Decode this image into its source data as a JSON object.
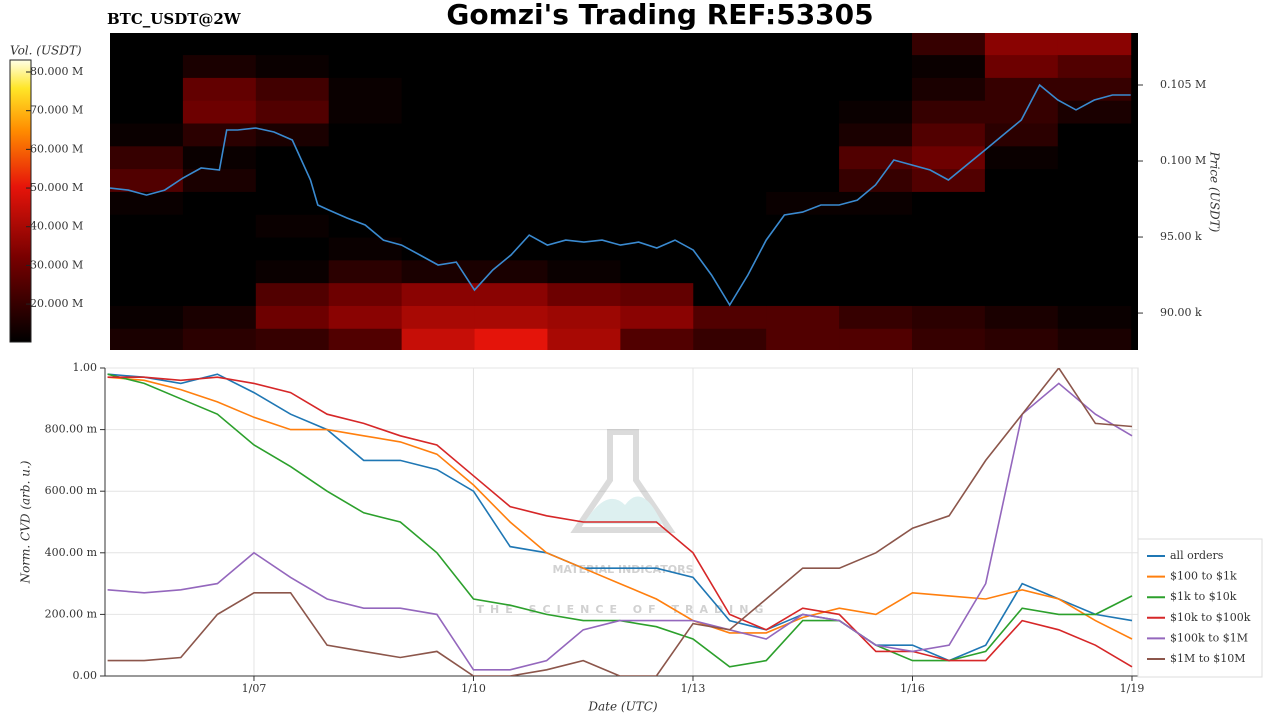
{
  "chart_data": [
    {
      "type": "heatmap",
      "title": "Gomzi's Trading REF:53305",
      "subtitle": "BTC_USDT@2W",
      "colorbar_label": "Vol. (USDT)",
      "ylabel": "Price (USDT)",
      "xlim": [
        5.0,
        19.1
      ],
      "ylim": [
        87570,
        108420
      ],
      "yticks": [
        {
          "value": 90000,
          "label": "90.00 k"
        },
        {
          "value": 95000,
          "label": "95.00 k"
        },
        {
          "value": 100000,
          "label": "0.100 M"
        },
        {
          "value": 105000,
          "label": "0.105 M"
        }
      ],
      "zlim": [
        10200000,
        83100000
      ],
      "zticks": [
        {
          "value": 20000000,
          "label": "20.000 M"
        },
        {
          "value": 30000000,
          "label": "30.000 M"
        },
        {
          "value": 40000000,
          "label": "40.000 M"
        },
        {
          "value": 50000000,
          "label": "50.000 M"
        },
        {
          "value": 60000000,
          "label": "60.000 M"
        },
        {
          "value": 70000000,
          "label": "70.000 M"
        },
        {
          "value": 80000000,
          "label": "80.000 M"
        }
      ],
      "x_bins": [
        5,
        6,
        7,
        8,
        9,
        10,
        11,
        12,
        13,
        14,
        15,
        16,
        17,
        18,
        19
      ],
      "y_bins": [
        87500,
        89000,
        90500,
        92000,
        93500,
        95000,
        96500,
        98000,
        99500,
        101000,
        102500,
        104000,
        105500,
        107000,
        108500
      ],
      "z": [
        [
          15000000,
          18000000,
          20000000,
          25000000,
          45000000,
          50000000,
          40000000,
          25000000,
          20000000,
          25000000,
          25000000,
          20000000,
          18000000,
          15000000
        ],
        [
          12000000,
          15000000,
          30000000,
          35000000,
          40000000,
          40000000,
          38000000,
          35000000,
          25000000,
          25000000,
          20000000,
          18000000,
          15000000,
          12000000
        ],
        [
          8000000,
          10000000,
          25000000,
          30000000,
          35000000,
          35000000,
          30000000,
          28000000,
          10000000,
          10000000,
          8000000,
          8000000,
          8000000,
          8000000
        ],
        [
          5000000,
          5000000,
          12000000,
          18000000,
          15000000,
          15000000,
          12000000,
          10000000,
          5000000,
          5000000,
          5000000,
          5000000,
          5000000,
          5000000
        ],
        [
          5000000,
          5000000,
          10000000,
          12000000,
          8000000,
          8000000,
          8000000,
          8000000,
          5000000,
          5000000,
          5000000,
          5000000,
          5000000,
          5000000
        ],
        [
          8000000,
          5000000,
          12000000,
          10000000,
          5000000,
          5000000,
          5000000,
          5000000,
          8000000,
          8000000,
          5000000,
          5000000,
          5000000,
          5000000
        ],
        [
          12000000,
          10000000,
          10000000,
          6000000,
          5000000,
          5000000,
          5000000,
          5000000,
          10000000,
          12000000,
          12000000,
          8000000,
          8000000,
          8000000
        ],
        [
          25000000,
          15000000,
          8000000,
          5000000,
          5000000,
          5000000,
          5000000,
          5000000,
          5000000,
          10000000,
          20000000,
          25000000,
          10000000,
          8000000
        ],
        [
          20000000,
          12000000,
          6000000,
          5000000,
          5000000,
          5000000,
          5000000,
          5000000,
          5000000,
          8000000,
          25000000,
          30000000,
          12000000,
          10000000
        ],
        [
          12000000,
          18000000,
          15000000,
          8000000,
          5000000,
          5000000,
          5000000,
          5000000,
          5000000,
          5000000,
          15000000,
          25000000,
          18000000,
          10000000
        ],
        [
          10000000,
          30000000,
          25000000,
          12000000,
          8000000,
          6000000,
          5000000,
          5000000,
          5000000,
          5000000,
          12000000,
          20000000,
          20000000,
          15000000
        ],
        [
          10000000,
          28000000,
          22000000,
          12000000,
          8000000,
          8000000,
          6000000,
          6000000,
          6000000,
          6000000,
          10000000,
          15000000,
          20000000,
          20000000
        ],
        [
          8000000,
          15000000,
          12000000,
          10000000,
          10000000,
          8000000,
          8000000,
          8000000,
          8000000,
          8000000,
          10000000,
          12000000,
          30000000,
          25000000
        ],
        [
          8000000,
          10000000,
          10000000,
          10000000,
          8000000,
          8000000,
          8000000,
          8000000,
          8000000,
          8000000,
          10000000,
          20000000,
          35000000,
          35000000
        ]
      ],
      "line": {
        "color": "#3a8ad0",
        "x": [
          5,
          5.25,
          5.5,
          5.75,
          6,
          6.25,
          6.5,
          6.6,
          6.75,
          7,
          7.25,
          7.5,
          7.75,
          7.85,
          8,
          8.25,
          8.5,
          8.75,
          9,
          9.25,
          9.5,
          9.75,
          10,
          10.25,
          10.5,
          10.75,
          11,
          11.25,
          11.5,
          11.75,
          12,
          12.25,
          12.5,
          12.75,
          13,
          13.25,
          13.5,
          13.75,
          14,
          14.25,
          14.5,
          14.75,
          15,
          15.25,
          15.5,
          15.75,
          16,
          16.25,
          16.5,
          16.75,
          17,
          17.25,
          17.5,
          17.75,
          18,
          18.25,
          18.5,
          18.75,
          19
        ],
        "values": [
          98220,
          98090,
          97760,
          98090,
          98880,
          99540,
          99410,
          102040,
          102040,
          102170,
          101910,
          101380,
          98750,
          97110,
          96780,
          96250,
          95790,
          94800,
          94470,
          93820,
          93160,
          93350,
          91510,
          92830,
          93820,
          95130,
          94470,
          94800,
          94670,
          94800,
          94470,
          94670,
          94280,
          94800,
          94140,
          92500,
          90530,
          92500,
          94800,
          96450,
          96640,
          97110,
          97110,
          97430,
          98420,
          100070,
          99740,
          99410,
          98750,
          99740,
          100720,
          101710,
          102700,
          105000,
          104010,
          103360,
          104010,
          104340,
          104340
        ]
      }
    },
    {
      "type": "line",
      "xlabel": "Date (UTC)",
      "ylabel": "Norm. CVD (arb. u.)",
      "annotations": [
        "MATERIAL INDICATORS",
        "THE SCIENCE OF TRADING"
      ],
      "xlim": [
        4.964,
        19.082
      ],
      "ylim": [
        0,
        1
      ],
      "grid": true,
      "xticks": [
        {
          "value": 7,
          "label": "1/07"
        },
        {
          "value": 10,
          "label": "1/10"
        },
        {
          "value": 13,
          "label": "1/13"
        },
        {
          "value": 16,
          "label": "1/16"
        },
        {
          "value": 19,
          "label": "1/19"
        }
      ],
      "yticks": [
        {
          "value": 0,
          "label": "0.00"
        },
        {
          "value": 0.2,
          "label": "200.00 m"
        },
        {
          "value": 0.4,
          "label": "400.00 m"
        },
        {
          "value": 0.6,
          "label": "600.00 m"
        },
        {
          "value": 0.8,
          "label": "800.00 m"
        },
        {
          "value": 1,
          "label": "1.00"
        }
      ],
      "x": [
        5,
        5.5,
        6,
        6.5,
        7,
        7.5,
        8,
        8.5,
        9,
        9.5,
        10,
        10.5,
        11,
        11.5,
        12,
        12.5,
        13,
        13.5,
        14,
        14.5,
        15,
        15.5,
        16,
        16.5,
        17,
        17.5,
        18,
        18.5,
        19
      ],
      "legend": "lower-right",
      "series": [
        {
          "name": "all orders",
          "color": "#1f77b4",
          "values": [
            0.98,
            0.97,
            0.95,
            0.98,
            0.92,
            0.85,
            0.8,
            0.7,
            0.7,
            0.67,
            0.6,
            0.42,
            0.4,
            0.35,
            0.35,
            0.35,
            0.32,
            0.18,
            0.15,
            0.2,
            0.18,
            0.1,
            0.1,
            0.05,
            0.1,
            0.3,
            0.25,
            0.2,
            0.18
          ]
        },
        {
          "name": "$100 to $1k",
          "color": "#ff7f0e",
          "values": [
            0.97,
            0.96,
            0.93,
            0.89,
            0.84,
            0.8,
            0.8,
            0.78,
            0.76,
            0.72,
            0.62,
            0.5,
            0.4,
            0.35,
            0.3,
            0.25,
            0.18,
            0.14,
            0.14,
            0.19,
            0.22,
            0.2,
            0.27,
            0.26,
            0.25,
            0.28,
            0.25,
            0.18,
            0.12
          ]
        },
        {
          "name": "$1k to $10k",
          "color": "#2ca02c",
          "values": [
            0.98,
            0.95,
            0.9,
            0.85,
            0.75,
            0.68,
            0.6,
            0.53,
            0.5,
            0.4,
            0.25,
            0.23,
            0.2,
            0.18,
            0.18,
            0.16,
            0.12,
            0.03,
            0.05,
            0.18,
            0.18,
            0.1,
            0.05,
            0.05,
            0.08,
            0.22,
            0.2,
            0.2,
            0.26
          ]
        },
        {
          "name": "$10k to $100k",
          "color": "#d62728",
          "values": [
            0.97,
            0.97,
            0.96,
            0.97,
            0.95,
            0.92,
            0.85,
            0.82,
            0.78,
            0.75,
            0.65,
            0.55,
            0.52,
            0.5,
            0.5,
            0.5,
            0.4,
            0.2,
            0.15,
            0.22,
            0.2,
            0.08,
            0.08,
            0.05,
            0.05,
            0.18,
            0.15,
            0.1,
            0.03
          ]
        },
        {
          "name": "$100k to $1M",
          "color": "#9467bd",
          "values": [
            0.28,
            0.27,
            0.28,
            0.3,
            0.4,
            0.32,
            0.25,
            0.22,
            0.22,
            0.2,
            0.02,
            0.02,
            0.05,
            0.15,
            0.18,
            0.18,
            0.18,
            0.15,
            0.12,
            0.2,
            0.18,
            0.1,
            0.08,
            0.1,
            0.3,
            0.85,
            0.95,
            0.85,
            0.78
          ]
        },
        {
          "name": "$1M to $10M",
          "color": "#8c564b",
          "values": [
            0.05,
            0.05,
            0.06,
            0.2,
            0.27,
            0.27,
            0.1,
            0.08,
            0.06,
            0.08,
            0.0,
            0.0,
            0.02,
            0.05,
            0.0,
            0.0,
            0.17,
            0.15,
            0.25,
            0.35,
            0.35,
            0.4,
            0.48,
            0.52,
            0.7,
            0.85,
            1.0,
            0.82,
            0.81
          ]
        }
      ]
    }
  ]
}
